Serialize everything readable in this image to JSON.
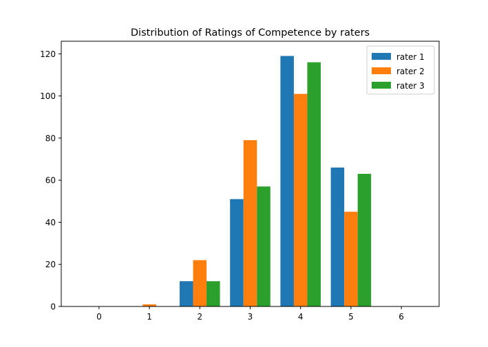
{
  "chart_data": {
    "type": "bar",
    "title": "Distribution of Ratings of Competence by raters",
    "xlabel": "",
    "ylabel": "",
    "x_ticks": [
      0,
      1,
      2,
      3,
      4,
      5,
      6
    ],
    "y_ticks": [
      0,
      20,
      40,
      60,
      80,
      100,
      120
    ],
    "xlim": [
      -0.75,
      6.75
    ],
    "ylim": [
      0,
      126
    ],
    "legend_position": "top-right",
    "grid": false,
    "categories": [
      1,
      2,
      3,
      4,
      5
    ],
    "series": [
      {
        "name": "rater 1",
        "color": "#1f77b4",
        "values": [
          0,
          12,
          51,
          119,
          66
        ]
      },
      {
        "name": "rater 2",
        "color": "#ff7f0e",
        "values": [
          1,
          22,
          79,
          101,
          45
        ]
      },
      {
        "name": "rater 3",
        "color": "#2ca02c",
        "values": [
          0,
          12,
          57,
          116,
          63
        ]
      }
    ]
  }
}
